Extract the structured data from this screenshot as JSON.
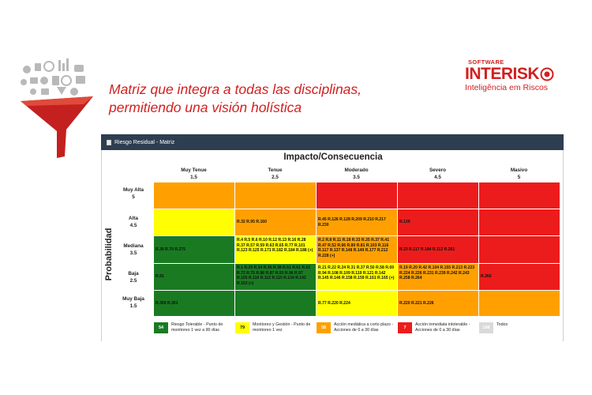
{
  "slide": {
    "headline_line1": "Matriz que integra a todas las disciplinas,",
    "headline_line2": "permitiendo una visión holística",
    "brand": {
      "software": "SOFTWARE",
      "name": "INTERISK",
      "tagline": "Inteligência em Riscos"
    }
  },
  "panel": {
    "title": "Riesgo Residual - Matriz",
    "impact_title": "Impacto/Consecuencia",
    "probability_title": "Probabilidad",
    "columns": [
      {
        "name": "Muy Tenue",
        "value": "1.5"
      },
      {
        "name": "Tenue",
        "value": "2.5"
      },
      {
        "name": "Moderado",
        "value": "3.5"
      },
      {
        "name": "Severo",
        "value": "4.5"
      },
      {
        "name": "Masivo",
        "value": "5"
      }
    ],
    "rows": [
      {
        "name": "Muy Alta",
        "value": "5",
        "cells": [
          {
            "color": "#ffa000",
            "text": ""
          },
          {
            "color": "#ffa000",
            "text": ""
          },
          {
            "color": "#ec1c1c",
            "text": ""
          },
          {
            "color": "#ec1c1c",
            "text": ""
          },
          {
            "color": "#ec1c1c",
            "text": ""
          }
        ]
      },
      {
        "name": "Alta",
        "value": "4.5",
        "cells": [
          {
            "color": "#ffff00",
            "text": ""
          },
          {
            "color": "#ffa000",
            "text": "R.32 R.95 R.160"
          },
          {
            "color": "#ffa000",
            "text": "R.45 R.126 R.128 R.209 R.210 R.217 R.230"
          },
          {
            "color": "#ec1c1c",
            "text": "R.139"
          },
          {
            "color": "#ec1c1c",
            "text": ""
          }
        ]
      },
      {
        "name": "Mediana",
        "value": "3.5",
        "cells": [
          {
            "color": "#1a7a22",
            "text": "R.39 R.70 R.275"
          },
          {
            "color": "#ffff00",
            "text": "R.4 R.5 R.6 R.10 R.12 R.13 R.16 R.28 R.37 R.57 R.59 R.63 R.65 R.77 R.101 R.123 R.125 R.171 R.182 R.184 R.188 (+)"
          },
          {
            "color": "#ffa000",
            "text": "R.2 R.8 R.11 R.18 R.33 R.35 R.37 R.41 R.47 R.52 R.66 R.80 R.81 R.103 R.116 R.117 R.137 R.148 R.149 R.177 R.212 R.228 (+)"
          },
          {
            "color": "#ec1c1c",
            "text": "R.23 R.117 R.184 R.112 R.281"
          },
          {
            "color": "#ec1c1c",
            "text": ""
          }
        ]
      },
      {
        "name": "Baja",
        "value": "2.5",
        "cells": [
          {
            "color": "#1a7a22",
            "text": "R.91"
          },
          {
            "color": "#1a7a22",
            "text": "R.1 R.29 R.34 R.36 R.38 R.51 R.61 R.62 R.72 R.75 R.86 R.87 R.93 R.96 R.97 R.105 R.110 R.112 R.115 R.134 R.142 R.153 (+)"
          },
          {
            "color": "#ffff00",
            "text": "R.21 R.22 R.24 R.31 R.37 R.50 R.58 R.69 R.94 R.108 R.109 R.119 R.121 R.142 R.145 R.146 R.158 R.159 R.161 R.165 (+)"
          },
          {
            "color": "#ffa000",
            "text": "R.19 R.20 R.42 R.104 R.155 R.213 R.223 R.224 R.226 R.231 R.239 R.242 R.243 R.258 R.264"
          },
          {
            "color": "#ec1c1c",
            "text": "R.266"
          }
        ]
      },
      {
        "name": "Muy Baja",
        "value": "1.5",
        "cells": [
          {
            "color": "#1a7a22",
            "text": "R.300 R.301"
          },
          {
            "color": "#1a7a22",
            "text": ""
          },
          {
            "color": "#ffff00",
            "text": "R.77 R.220 R.224"
          },
          {
            "color": "#ffa000",
            "text": "R.220 R.221 R.226"
          },
          {
            "color": "#ffa000",
            "text": ""
          }
        ]
      }
    ],
    "legend": [
      {
        "count": "54",
        "color": "#1a7a22",
        "text_color": "#ffffff",
        "label": "Riesgo Tolerable - Punto de monitoreo 1 vez a 90 días"
      },
      {
        "count": "79",
        "color": "#ffff00",
        "text_color": "#111111",
        "label": "Monitoreo y Gestión - Punto de monitoreo 1 vez"
      },
      {
        "count": "58",
        "color": "#ffa000",
        "text_color": "#ffffff",
        "label": "Acción mediática a corto plazo - Acciones de 0 a 30 días"
      },
      {
        "count": "7",
        "color": "#ec1c1c",
        "text_color": "#ffffff",
        "label": "Acción inmediata intolerable - Acciones de 0 a 30 días"
      },
      {
        "count": "198",
        "color": "#d9d9d9",
        "text_color": "#ffffff",
        "label": "Todos"
      }
    ]
  }
}
